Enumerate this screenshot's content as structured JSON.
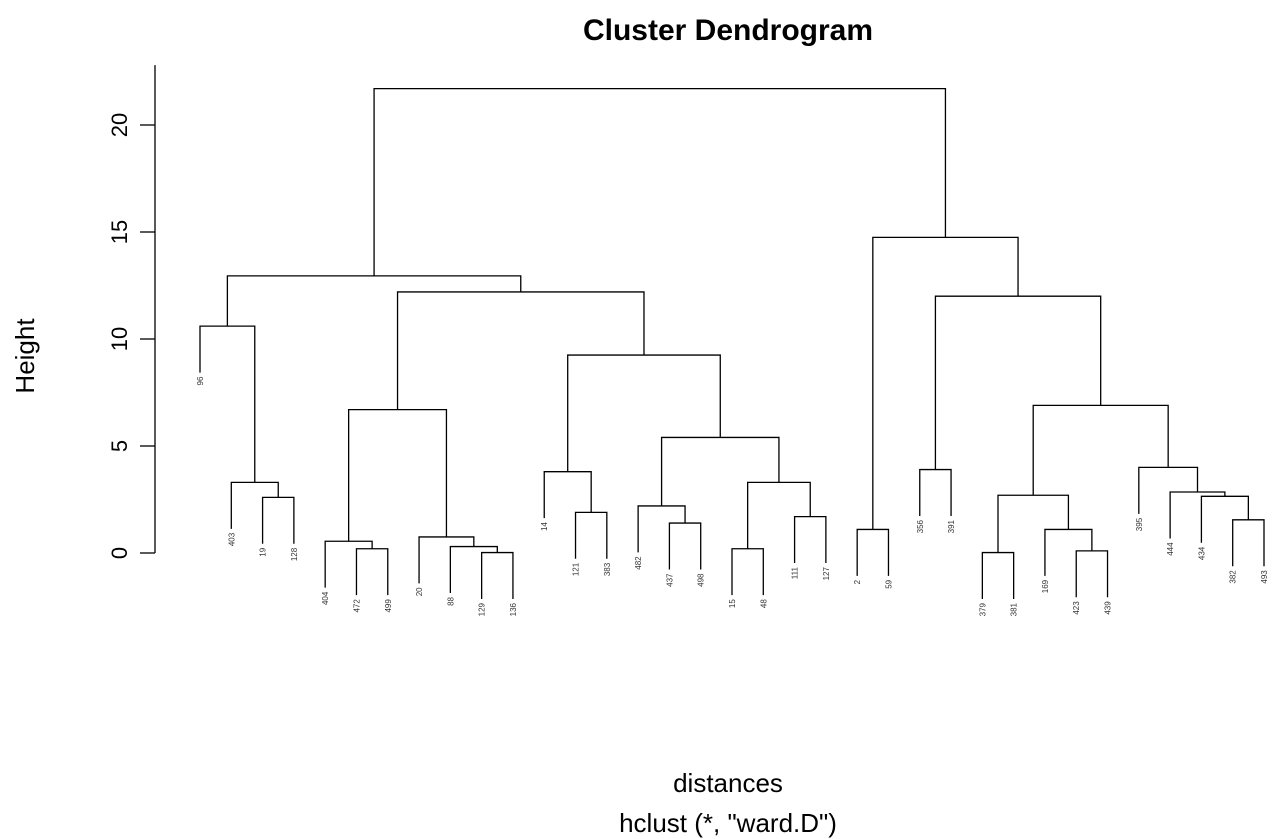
{
  "chart_data": {
    "type": "dendrogram",
    "title": "Cluster Dendrogram",
    "xlabel": "distances",
    "subtitle": "hclust (*, \"ward.D\")",
    "ylabel": "Height",
    "labels": [
      "96",
      "403",
      "19",
      "128",
      "404",
      "472",
      "499",
      "20",
      "88",
      "129",
      "136",
      "14",
      "121",
      "383",
      "482",
      "437",
      "498",
      "15",
      "48",
      "111",
      "127",
      "2",
      "59",
      "356",
      "391",
      "379",
      "381",
      "169",
      "423",
      "439",
      "395",
      "444",
      "434",
      "382",
      "493"
    ],
    "merge": [
      [
        -3,
        -4
      ],
      [
        -2,
        1
      ],
      [
        -1,
        2
      ],
      [
        -6,
        -7
      ],
      [
        -5,
        4
      ],
      [
        -10,
        -11
      ],
      [
        -9,
        6
      ],
      [
        -8,
        7
      ],
      [
        5,
        8
      ],
      [
        -13,
        -14
      ],
      [
        -12,
        10
      ],
      [
        -16,
        -17
      ],
      [
        -15,
        12
      ],
      [
        -18,
        -19
      ],
      [
        -20,
        -21
      ],
      [
        14,
        15
      ],
      [
        13,
        16
      ],
      [
        11,
        17
      ],
      [
        9,
        18
      ],
      [
        3,
        19
      ],
      [
        -22,
        -23
      ],
      [
        -24,
        -25
      ],
      [
        -26,
        -27
      ],
      [
        -29,
        -30
      ],
      [
        -28,
        24
      ],
      [
        23,
        25
      ],
      [
        -34,
        -35
      ],
      [
        -33,
        27
      ],
      [
        -32,
        28
      ],
      [
        -31,
        29
      ],
      [
        26,
        30
      ],
      [
        22,
        31
      ],
      [
        21,
        32
      ],
      [
        20,
        33
      ]
    ],
    "height": [
      2.6,
      3.3,
      10.6,
      0.2,
      0.55,
      0.02,
      0.3,
      0.75,
      6.7,
      1.9,
      3.8,
      1.4,
      2.2,
      0.2,
      1.7,
      3.3,
      5.4,
      9.25,
      12.2,
      12.95,
      1.1,
      3.9,
      0.02,
      0.1,
      1.1,
      2.7,
      1.55,
      2.65,
      2.85,
      4.0,
      6.9,
      12.0,
      14.75,
      21.7
    ],
    "ylim": [
      0,
      22.8
    ],
    "yticks": [
      0,
      5,
      10,
      15,
      20
    ]
  }
}
